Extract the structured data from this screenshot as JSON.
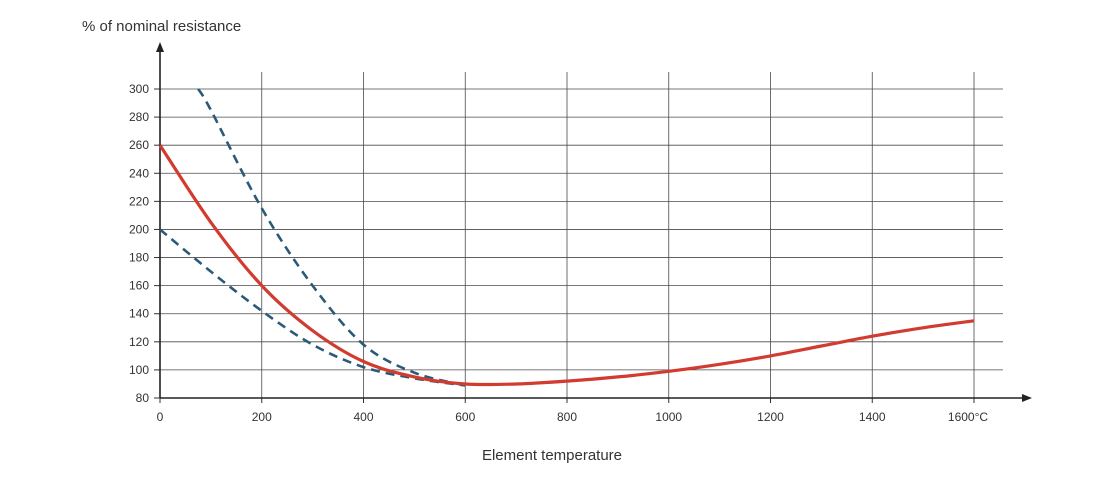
{
  "chart_data": {
    "type": "line",
    "title": "",
    "ylabel": "% of nominal resistance",
    "xlabel": "Element temperature",
    "x_unit": "°C",
    "xlim": [
      0,
      1600
    ],
    "ylim": [
      80,
      300
    ],
    "x_ticks": [
      0,
      200,
      400,
      600,
      800,
      1000,
      1200,
      1400,
      1600
    ],
    "x_tick_labels": [
      "0",
      "200",
      "400",
      "600",
      "800",
      "1000",
      "1200",
      "1400",
      "1600°C"
    ],
    "y_ticks": [
      80,
      100,
      120,
      140,
      160,
      180,
      200,
      220,
      240,
      260,
      280,
      300
    ],
    "y_tick_labels": [
      "80",
      "100",
      "120",
      "140",
      "160",
      "180",
      "200",
      "220",
      "240",
      "260",
      "280",
      "300"
    ],
    "grid": true,
    "series": [
      {
        "style": "solid",
        "color": "#d23b30",
        "x": [
          0,
          100,
          200,
          300,
          400,
          500,
          600,
          700,
          800,
          900,
          1000,
          1100,
          1200,
          1300,
          1400,
          1500,
          1600
        ],
        "y": [
          260,
          205,
          160,
          128,
          106,
          95,
          90,
          90,
          92,
          95,
          99,
          104,
          110,
          117,
          124,
          130,
          135
        ]
      },
      {
        "style": "dashed",
        "color": "#2b5a78",
        "x": [
          75,
          100,
          200,
          300,
          400,
          500,
          600
        ],
        "y": [
          300,
          285,
          215,
          160,
          118,
          98,
          89
        ]
      },
      {
        "style": "dashed",
        "color": "#2b5a78",
        "x": [
          0,
          100,
          200,
          300,
          400,
          500,
          600
        ],
        "y": [
          200,
          170,
          142,
          118,
          102,
          94,
          89
        ]
      }
    ]
  }
}
